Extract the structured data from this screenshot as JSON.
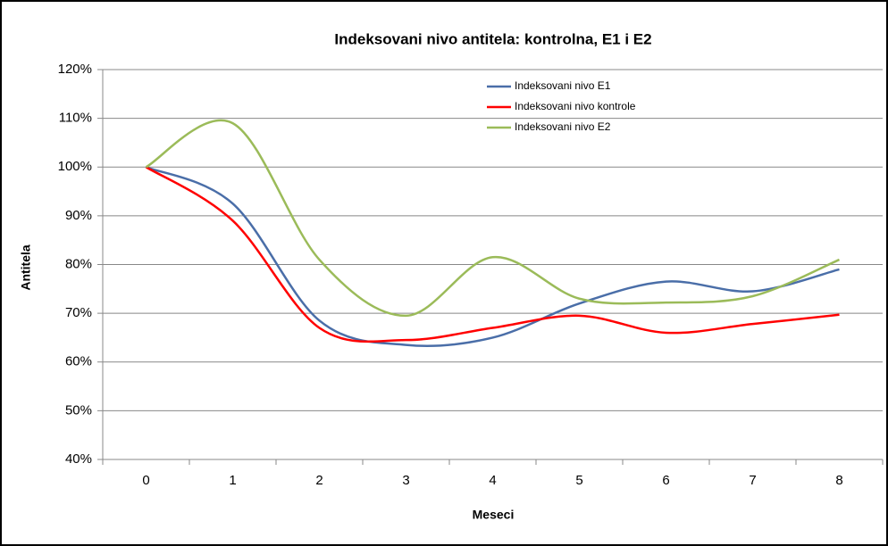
{
  "chart_data": {
    "type": "line",
    "title": "Indeksovani nivo antitela: kontrolna, E1 i E2",
    "xlabel": "Meseci",
    "ylabel": "Antitela",
    "categories": [
      "0",
      "1",
      "2",
      "3",
      "4",
      "5",
      "6",
      "7",
      "8"
    ],
    "series": [
      {
        "name": "Indeksovani nivo E1",
        "color": "#4a6ea8",
        "values": [
          100,
          92.5,
          68.5,
          63.5,
          65,
          72,
          76.5,
          74.5,
          79
        ]
      },
      {
        "name": "Indeksovani nivo kontrole",
        "color": "#ff0000",
        "values": [
          100,
          89,
          67,
          64.5,
          67,
          69.5,
          66,
          67.8,
          69.7
        ]
      },
      {
        "name": "Indeksovani nivo  E2",
        "color": "#9bbb59",
        "values": [
          100,
          109,
          81,
          69.5,
          81.5,
          73,
          72.2,
          73.5,
          81
        ]
      }
    ],
    "ylim": [
      40,
      120
    ],
    "yticks": [
      {
        "value": 40,
        "label": "40%"
      },
      {
        "value": 50,
        "label": "50%"
      },
      {
        "value": 60,
        "label": "60%"
      },
      {
        "value": 70,
        "label": "70%"
      },
      {
        "value": 80,
        "label": "80%"
      },
      {
        "value": 90,
        "label": "90%"
      },
      {
        "value": 100,
        "label": "100%"
      },
      {
        "value": 110,
        "label": "110%"
      },
      {
        "value": 120,
        "label": "120%"
      }
    ],
    "grid": true,
    "smooth": true
  }
}
